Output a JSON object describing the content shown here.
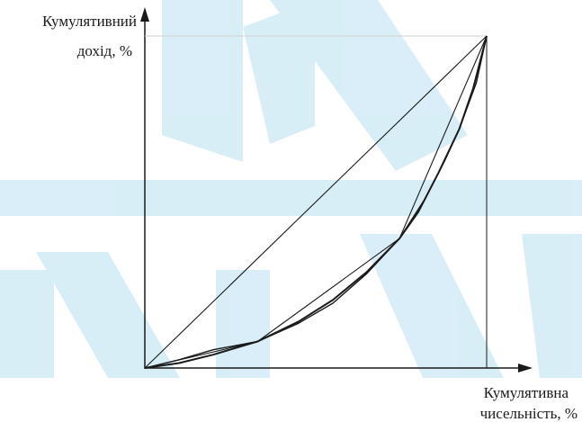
{
  "chart_data": {
    "type": "line",
    "title": "",
    "ylabel_lines": [
      "Кумулятивний",
      "дохід, %"
    ],
    "xlabel_lines": [
      "Кумулятивна",
      "чисельність, %"
    ],
    "xlim": [
      0,
      100
    ],
    "ylim": [
      0,
      100
    ],
    "grid": false,
    "legend": "none",
    "series": [
      {
        "key": "equality",
        "points": [
          [
            0,
            0
          ],
          [
            100,
            100
          ]
        ]
      },
      {
        "key": "polyline",
        "points": [
          [
            0,
            0
          ],
          [
            33,
            8
          ],
          [
            74.5,
            39
          ],
          [
            100,
            100
          ]
        ]
      },
      {
        "key": "curve-a",
        "points": [
          [
            0,
            0
          ],
          [
            10,
            1.5
          ],
          [
            20,
            4
          ],
          [
            33,
            8
          ],
          [
            45,
            14
          ],
          [
            55,
            20.5
          ],
          [
            65,
            29
          ],
          [
            74.5,
            39
          ],
          [
            80,
            47
          ],
          [
            86,
            59
          ],
          [
            92,
            72
          ],
          [
            96,
            84
          ],
          [
            100,
            100
          ]
        ]
      },
      {
        "key": "curve-b",
        "points": [
          [
            0,
            0
          ],
          [
            10,
            2.5
          ],
          [
            20,
            5.5
          ],
          [
            33,
            8
          ],
          [
            45,
            13.5
          ],
          [
            55,
            19.5
          ],
          [
            65,
            28.5
          ],
          [
            74.5,
            39
          ],
          [
            82,
            51
          ],
          [
            88,
            63
          ],
          [
            92,
            72
          ],
          [
            97,
            86
          ],
          [
            100,
            100
          ]
        ]
      }
    ],
    "colors": {
      "line": "#1a1a1a",
      "guide": "#d0d0d0",
      "watermark": "#2aa3d6"
    }
  }
}
